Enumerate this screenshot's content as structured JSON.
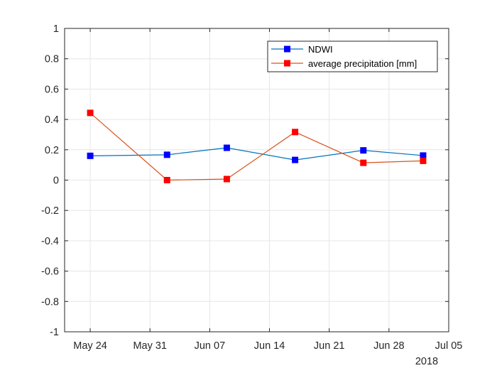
{
  "chart_data": {
    "type": "line",
    "title": "",
    "xlabel": "",
    "ylabel": "",
    "x_tick_labels": [
      "May 24",
      "May 31",
      "Jun 07",
      "Jun 14",
      "Jun 21",
      "Jun 28",
      "Jul 05"
    ],
    "x_secondary_label": "2018",
    "xlim": [
      "2018-05-21",
      "2018-07-05"
    ],
    "ylim": [
      -1,
      1
    ],
    "y_ticks": [
      -1,
      -0.8,
      -0.6,
      -0.4,
      -0.2,
      0,
      0.2,
      0.4,
      0.6,
      0.8,
      1
    ],
    "y_tick_labels": [
      "-1",
      "-0.8",
      "-0.6",
      "-0.4",
      "-0.2",
      "0",
      "0.2",
      "0.4",
      "0.6",
      "0.8",
      "1"
    ],
    "grid": true,
    "legend_position": "top-right",
    "series": [
      {
        "name": "NDWI",
        "color": "#0072BD",
        "marker_color": "#0000FF",
        "x": [
          "2018-05-24",
          "2018-06-02",
          "2018-06-09",
          "2018-06-17",
          "2018-06-25",
          "2018-07-02"
        ],
        "y": [
          0.16,
          0.167,
          0.213,
          0.133,
          0.196,
          0.162
        ]
      },
      {
        "name": "average precipitation [mm]",
        "color": "#D95319",
        "marker_color": "#FF0000",
        "x": [
          "2018-05-24",
          "2018-06-02",
          "2018-06-09",
          "2018-06-17",
          "2018-06-25",
          "2018-07-02"
        ],
        "y": [
          0.443,
          0.0,
          0.007,
          0.317,
          0.114,
          0.127
        ]
      }
    ]
  }
}
